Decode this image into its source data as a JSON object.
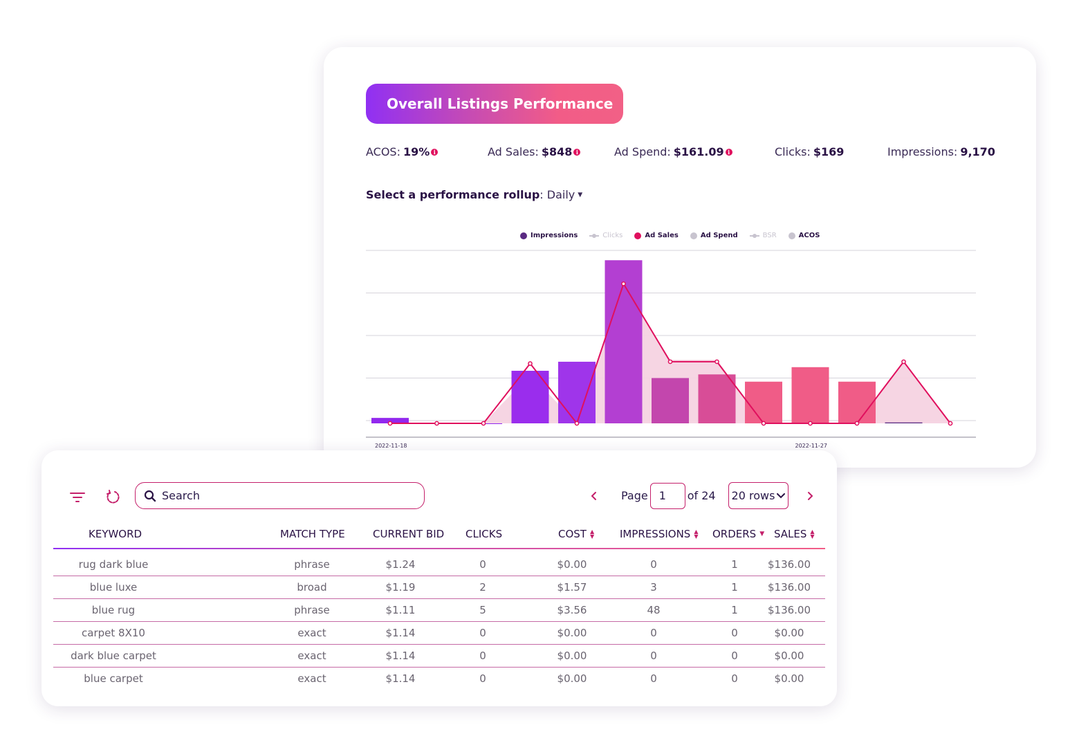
{
  "chart_card": {
    "title": "Overall Listings Performance",
    "stats": [
      {
        "label": "ACOS:",
        "value": "19%",
        "info": true
      },
      {
        "label": "Ad Sales:",
        "value": "$848",
        "info": true
      },
      {
        "label": "Ad Spend:",
        "value": "$161.09",
        "info": true
      },
      {
        "label": "Clicks:",
        "value": "$169",
        "info": false
      },
      {
        "label": "Impressions:",
        "value": "9,170",
        "info": false
      }
    ],
    "rollup_label": "Select a performance rollup",
    "rollup_value": "Daily",
    "legend": [
      {
        "name": "Impressions",
        "color": "#5a2a82",
        "marker": "dot",
        "active": true
      },
      {
        "name": "Clicks",
        "color": "#c8c4cf",
        "marker": "line",
        "active": false
      },
      {
        "name": "Ad Sales",
        "color": "#e0105e",
        "marker": "dot",
        "active": true
      },
      {
        "name": "Ad Spend",
        "color": "#c8c4cf",
        "marker": "dot",
        "active": true
      },
      {
        "name": "BSR",
        "color": "#c8c4cf",
        "marker": "line",
        "active": false
      },
      {
        "name": "ACOS",
        "color": "#c8c4cf",
        "marker": "dot",
        "active": true
      }
    ]
  },
  "chart_data": {
    "type": "bar",
    "x_tick_labels": [
      "2022-11-18",
      "2022-11-27"
    ],
    "x_tick_index": [
      0,
      9
    ],
    "bars": [
      {
        "name": "Impressions",
        "values": [
          3,
          0,
          0,
          29,
          34,
          90,
          25,
          27,
          23,
          31,
          23,
          0.5,
          null
        ]
      },
      {
        "name": "Ad Spend",
        "values": [
          0,
          0,
          0,
          0,
          0,
          0,
          0,
          0,
          0,
          0,
          0,
          0,
          0
        ],
        "area": [
          0,
          0,
          0,
          27,
          0,
          77,
          35,
          35,
          0,
          0,
          0,
          34,
          0
        ]
      }
    ],
    "series": [
      {
        "name": "Ad Sales",
        "values": [
          0,
          0,
          0,
          33,
          0,
          77,
          34,
          34,
          0,
          0,
          0,
          34,
          0
        ]
      }
    ],
    "ylim": [
      0,
      100
    ],
    "gridlines": 5,
    "bar_colors": [
      "#9228ee",
      "#9228ee",
      "#9228ee",
      "#9a2ded",
      "#9f35ea",
      "#b33fd2",
      "#c346ad",
      "#d84d97",
      "#f05c87",
      "#f05c87",
      "#f05c87",
      "#5a2a82",
      "#f05c87"
    ],
    "line_color": "#e0105e",
    "area_color": "#f6d3e2"
  },
  "table_card": {
    "search_placeholder": "Search",
    "page_label": "Page",
    "page_value": "1",
    "page_total": "of 24",
    "rows_label": "20 rows",
    "columns": [
      "KEYWORD",
      "MATCH TYPE",
      "CURRENT BID",
      "CLICKS",
      "COST",
      "IMPRESSIONS",
      "ORDERS",
      "SALES"
    ],
    "rows": [
      [
        "rug dark blue",
        "phrase",
        "$1.24",
        "0",
        "$0.00",
        "0",
        "1",
        "$136.00"
      ],
      [
        "blue luxe",
        "broad",
        "$1.19",
        "2",
        "$1.57",
        "3",
        "1",
        "$136.00"
      ],
      [
        "blue rug",
        "phrase",
        "$1.11",
        "5",
        "$3.56",
        "48",
        "1",
        "$136.00"
      ],
      [
        "carpet 8X10",
        "exact",
        "$1.14",
        "0",
        "$0.00",
        "0",
        "0",
        "$0.00"
      ],
      [
        "dark blue carpet",
        "exact",
        "$1.14",
        "0",
        "$0.00",
        "0",
        "0",
        "$0.00"
      ],
      [
        "blue carpet",
        "exact",
        "$1.14",
        "0",
        "$0.00",
        "0",
        "0",
        "$0.00"
      ]
    ]
  }
}
